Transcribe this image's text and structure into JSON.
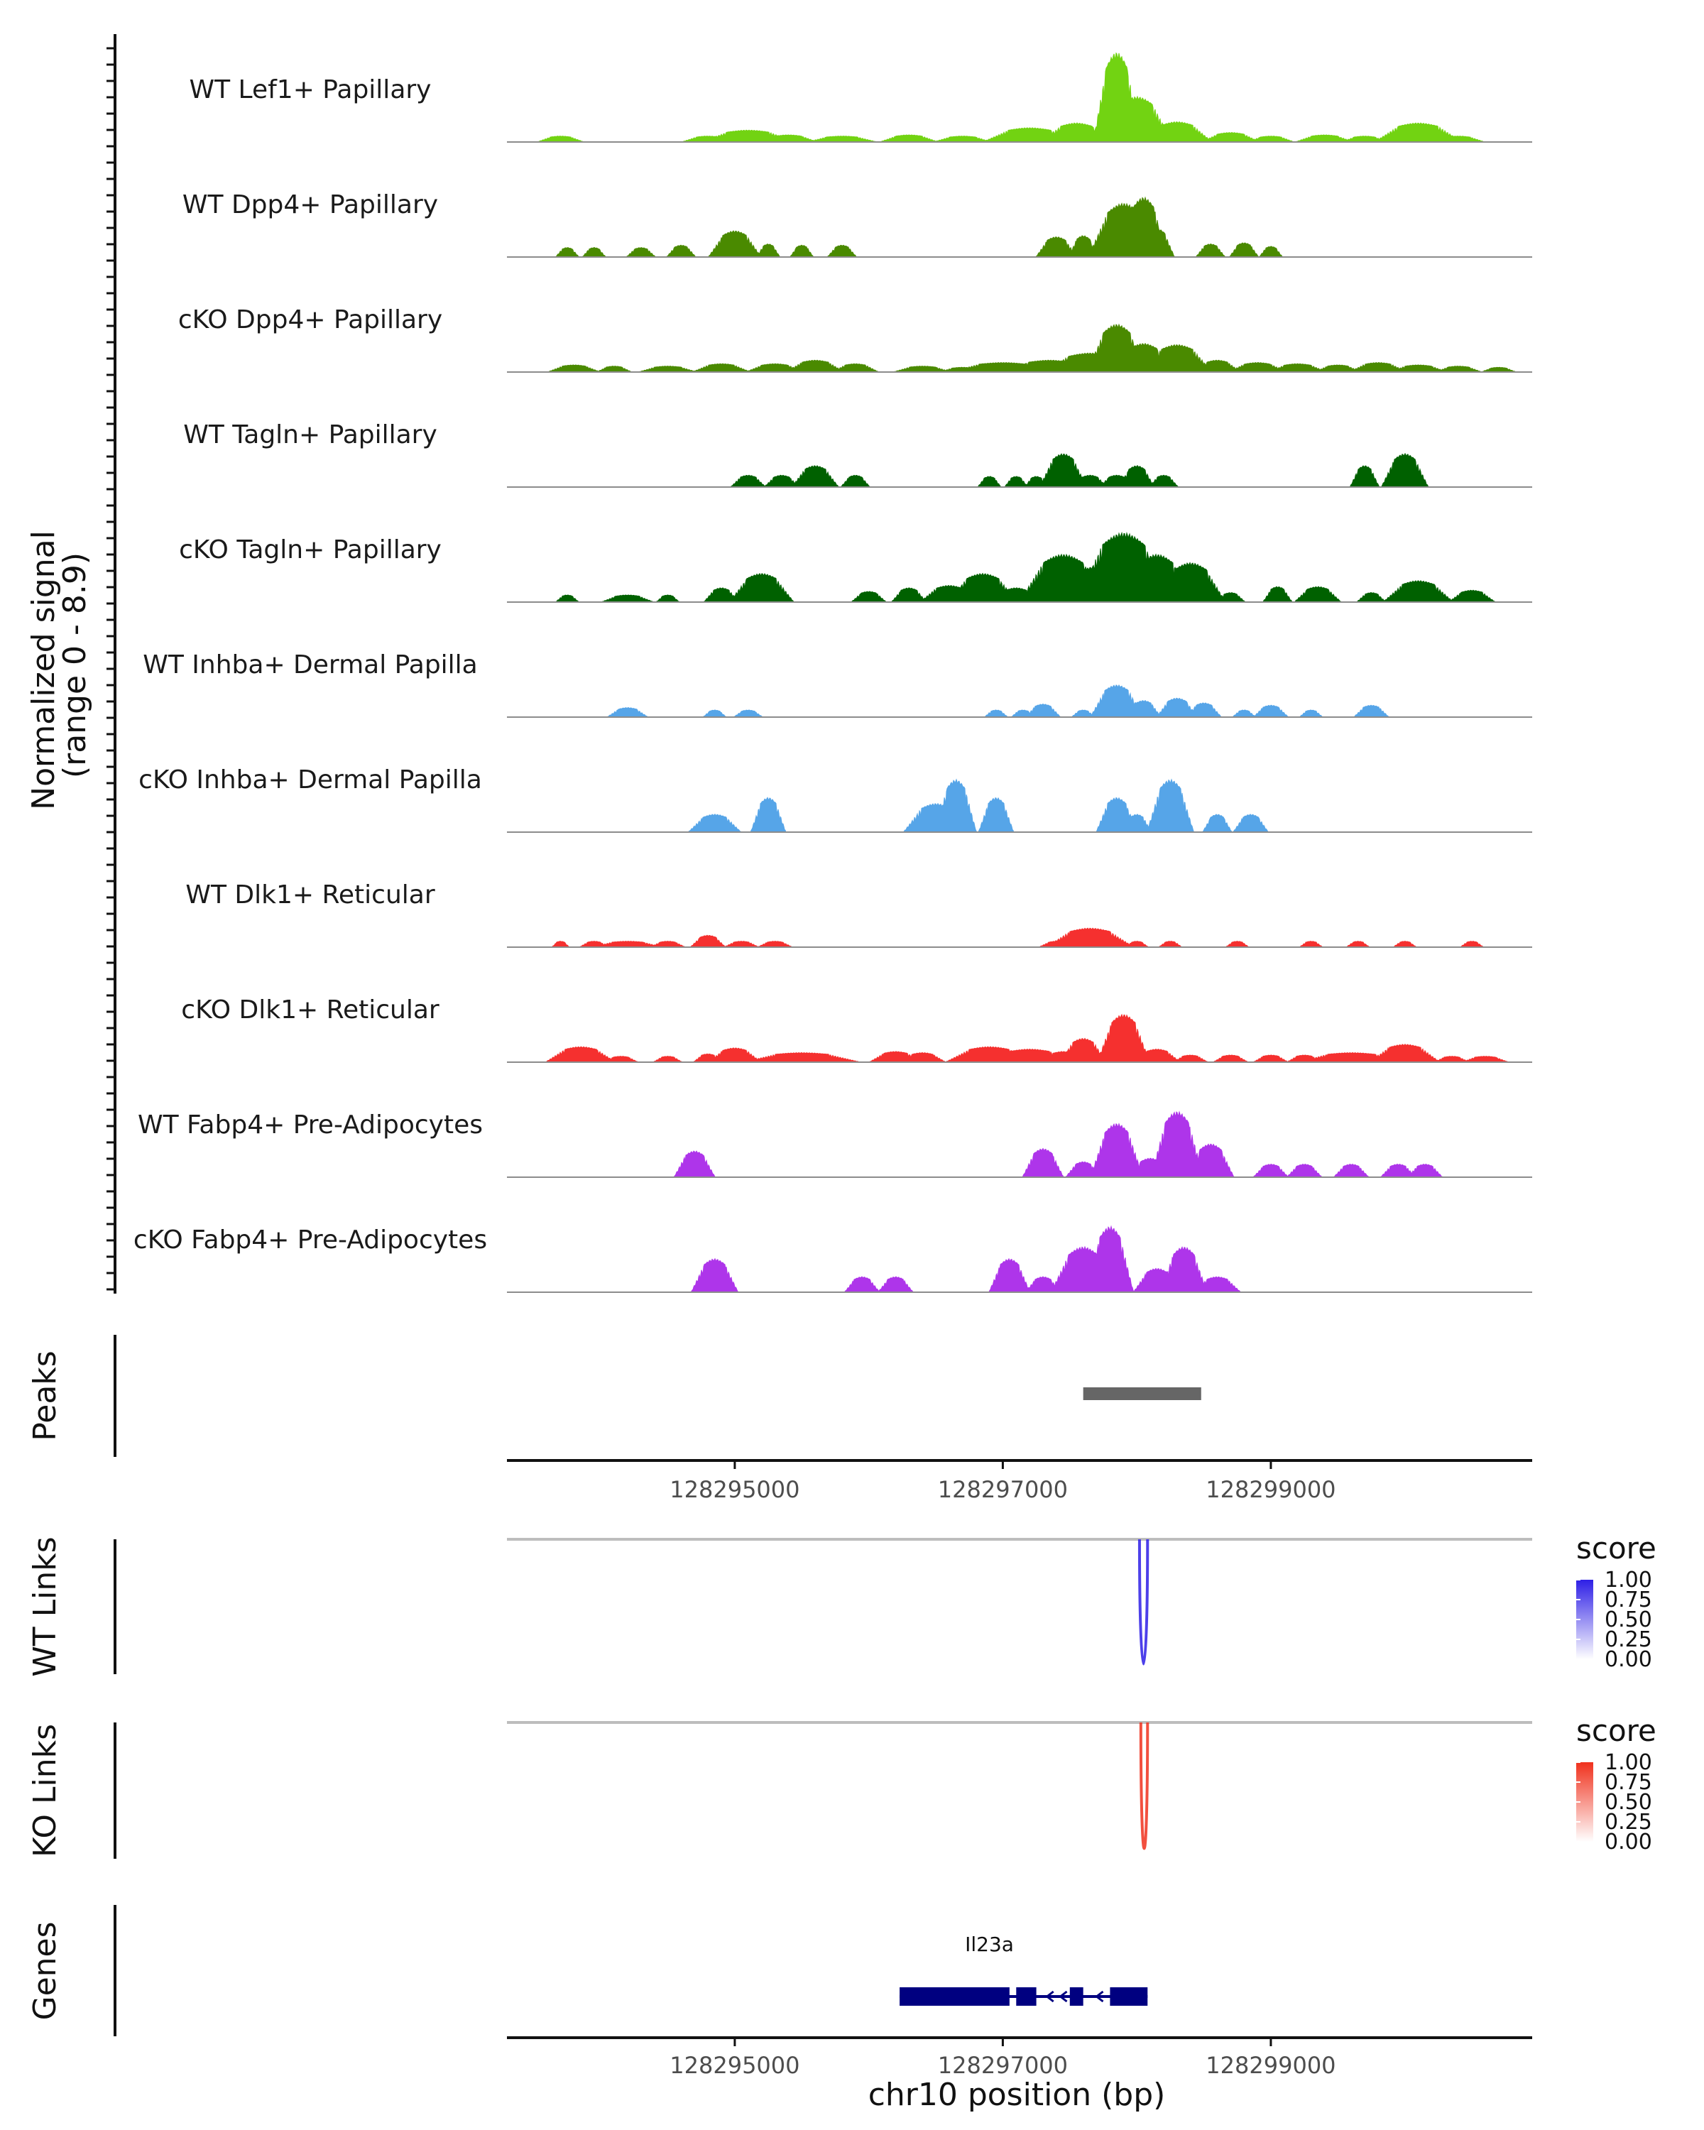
{
  "chart_data": {
    "type": "area",
    "title": "",
    "region": {
      "chrom": "chr10",
      "start": 128293300,
      "end": 128300950
    },
    "signal_axis_label": "Normalized signal\n(range 0 - 8.9)",
    "signal_range": [
      0,
      8.9
    ],
    "x_axis_label": "chr10 position (bp)",
    "x_ticks": [
      128295000,
      128297000,
      128299000
    ],
    "x_tick_labels": [
      "128295000",
      "128297000",
      "128299000"
    ],
    "tracks": [
      {
        "name": "WT Lef1+ Papillary",
        "color": "#72D312",
        "peaks": [
          [
            128293700,
            80,
            0.5
          ],
          [
            128294800,
            90,
            0.5
          ],
          [
            128295100,
            160,
            1.0
          ],
          [
            128295400,
            100,
            0.6
          ],
          [
            128295800,
            120,
            0.5
          ],
          [
            128296300,
            100,
            0.6
          ],
          [
            128296700,
            100,
            0.5
          ],
          [
            128297200,
            160,
            1.2
          ],
          [
            128297550,
            120,
            1.6
          ],
          [
            128297850,
            80,
            7.5
          ],
          [
            128298000,
            120,
            3.8
          ],
          [
            128298300,
            120,
            1.7
          ],
          [
            128298700,
            100,
            0.8
          ],
          [
            128299000,
            80,
            0.5
          ],
          [
            128299400,
            100,
            0.6
          ],
          [
            128299700,
            80,
            0.5
          ],
          [
            128300100,
            150,
            1.6
          ],
          [
            128300400,
            90,
            0.5
          ]
        ]
      },
      {
        "name": "WT Dpp4+ Papillary",
        "color": "#4A8A00",
        "peaks": [
          [
            128293750,
            40,
            0.8
          ],
          [
            128293950,
            40,
            0.8
          ],
          [
            128294300,
            50,
            0.8
          ],
          [
            128294600,
            50,
            1.0
          ],
          [
            128295000,
            90,
            2.2
          ],
          [
            128295250,
            40,
            1.1
          ],
          [
            128295500,
            40,
            1.0
          ],
          [
            128295800,
            50,
            1.0
          ],
          [
            128297800,
            50,
            1.0
          ],
          [
            128297400,
            70,
            1.7
          ],
          [
            128297600,
            50,
            1.8
          ],
          [
            128297900,
            120,
            4.5
          ],
          [
            128298050,
            80,
            5.0
          ],
          [
            128298150,
            60,
            2.4
          ],
          [
            128298550,
            50,
            1.1
          ],
          [
            128298800,
            50,
            1.2
          ],
          [
            128299000,
            40,
            0.9
          ]
        ]
      },
      {
        "name": "cKO Dpp4+ Papillary",
        "color": "#4A8A00",
        "peaks": [
          [
            128293800,
            90,
            0.6
          ],
          [
            128294100,
            60,
            0.5
          ],
          [
            128294500,
            100,
            0.5
          ],
          [
            128294900,
            100,
            0.7
          ],
          [
            128295300,
            100,
            0.7
          ],
          [
            128295600,
            100,
            1.0
          ],
          [
            128295900,
            80,
            0.7
          ],
          [
            128296400,
            100,
            0.5
          ],
          [
            128296700,
            80,
            0.4
          ],
          [
            128297000,
            180,
            0.8
          ],
          [
            128297350,
            160,
            1.0
          ],
          [
            128297650,
            160,
            1.6
          ],
          [
            128297850,
            100,
            4.0
          ],
          [
            128298050,
            100,
            2.4
          ],
          [
            128298300,
            120,
            2.3
          ],
          [
            128298600,
            80,
            1.0
          ],
          [
            128298900,
            100,
            0.8
          ],
          [
            128299200,
            100,
            0.7
          ],
          [
            128299500,
            80,
            0.6
          ],
          [
            128299800,
            100,
            0.8
          ],
          [
            128300100,
            100,
            0.6
          ],
          [
            128300400,
            80,
            0.5
          ],
          [
            128300700,
            60,
            0.4
          ]
        ]
      },
      {
        "name": "WT Tagln+ Papillary",
        "color": "#006100",
        "peaks": [
          [
            128295100,
            60,
            1.0
          ],
          [
            128295350,
            60,
            1.0
          ],
          [
            128295600,
            80,
            1.8
          ],
          [
            128295900,
            50,
            1.0
          ],
          [
            128296900,
            40,
            0.9
          ],
          [
            128297100,
            40,
            0.9
          ],
          [
            128297250,
            40,
            0.9
          ],
          [
            128297450,
            80,
            2.8
          ],
          [
            128297650,
            60,
            1.0
          ],
          [
            128297850,
            60,
            1.0
          ],
          [
            128298000,
            60,
            1.8
          ],
          [
            128298200,
            50,
            1.0
          ],
          [
            128299700,
            50,
            1.8
          ],
          [
            128300000,
            80,
            2.8
          ]
        ]
      },
      {
        "name": "cKO Tagln+ Papillary",
        "color": "#006100",
        "peaks": [
          [
            128293750,
            40,
            0.6
          ],
          [
            128294200,
            90,
            0.6
          ],
          [
            128294500,
            40,
            0.6
          ],
          [
            128294900,
            60,
            1.2
          ],
          [
            128295200,
            110,
            2.4
          ],
          [
            128296000,
            60,
            0.9
          ],
          [
            128296300,
            60,
            1.2
          ],
          [
            128296600,
            100,
            1.4
          ],
          [
            128296850,
            120,
            2.4
          ],
          [
            128297100,
            80,
            1.2
          ],
          [
            128297450,
            150,
            4.0
          ],
          [
            128297700,
            140,
            3.0
          ],
          [
            128297900,
            160,
            5.8
          ],
          [
            128298150,
            120,
            4.0
          ],
          [
            128298400,
            120,
            3.3
          ],
          [
            128298700,
            50,
            0.8
          ],
          [
            128299050,
            50,
            1.3
          ],
          [
            128299350,
            80,
            1.3
          ],
          [
            128299750,
            50,
            0.8
          ],
          [
            128300100,
            120,
            1.8
          ],
          [
            128300500,
            80,
            1.0
          ]
        ]
      },
      {
        "name": "WT Inhba+ Dermal Papilla",
        "color": "#56A5E8",
        "peaks": [
          [
            128294200,
            70,
            0.8
          ],
          [
            128294850,
            40,
            0.6
          ],
          [
            128295100,
            50,
            0.6
          ],
          [
            128296950,
            40,
            0.6
          ],
          [
            128297150,
            40,
            0.6
          ],
          [
            128297300,
            60,
            1.1
          ],
          [
            128297600,
            40,
            0.6
          ],
          [
            128297850,
            90,
            2.7
          ],
          [
            128298050,
            60,
            1.4
          ],
          [
            128298300,
            70,
            1.6
          ],
          [
            128298500,
            60,
            1.2
          ],
          [
            128298800,
            40,
            0.6
          ],
          [
            128299000,
            60,
            1.0
          ],
          [
            128299300,
            40,
            0.6
          ],
          [
            128299750,
            60,
            1.0
          ]
        ]
      },
      {
        "name": "cKO Inhba+ Dermal Papilla",
        "color": "#56A5E8",
        "peaks": [
          [
            128294850,
            90,
            1.5
          ],
          [
            128295250,
            60,
            2.9
          ],
          [
            128296500,
            110,
            2.4
          ],
          [
            128296650,
            70,
            4.4
          ],
          [
            128296950,
            60,
            2.9
          ],
          [
            128297850,
            70,
            2.9
          ],
          [
            128298000,
            50,
            1.5
          ],
          [
            128298250,
            80,
            4.4
          ],
          [
            128298600,
            50,
            1.5
          ],
          [
            128298850,
            60,
            1.5
          ]
        ]
      },
      {
        "name": "WT Dlk1+ Reticular",
        "color": "#F5302F",
        "peaks": [
          [
            128293700,
            30,
            0.5
          ],
          [
            128293950,
            50,
            0.5
          ],
          [
            128294200,
            120,
            0.5
          ],
          [
            128294500,
            60,
            0.5
          ],
          [
            128294800,
            60,
            1.0
          ],
          [
            128295050,
            60,
            0.5
          ],
          [
            128295300,
            60,
            0.5
          ],
          [
            128297400,
            60,
            0.5
          ],
          [
            128297650,
            150,
            1.6
          ],
          [
            128298000,
            40,
            0.5
          ],
          [
            128298250,
            40,
            0.5
          ],
          [
            128298750,
            40,
            0.5
          ],
          [
            128299300,
            40,
            0.5
          ],
          [
            128299650,
            40,
            0.5
          ],
          [
            128300000,
            40,
            0.5
          ],
          [
            128300500,
            40,
            0.5
          ]
        ]
      },
      {
        "name": "cKO Dlk1+ Reticular",
        "color": "#F5302F",
        "peaks": [
          [
            128293850,
            120,
            1.3
          ],
          [
            128294150,
            60,
            0.5
          ],
          [
            128294500,
            50,
            0.5
          ],
          [
            128294800,
            50,
            0.7
          ],
          [
            128295000,
            90,
            1.2
          ],
          [
            128295500,
            200,
            0.8
          ],
          [
            128296200,
            90,
            0.9
          ],
          [
            128296400,
            80,
            0.8
          ],
          [
            128296900,
            150,
            1.3
          ],
          [
            128297200,
            150,
            1.1
          ],
          [
            128297450,
            80,
            0.9
          ],
          [
            128297600,
            80,
            2.0
          ],
          [
            128297900,
            90,
            4.0
          ],
          [
            128298150,
            80,
            1.1
          ],
          [
            128298400,
            60,
            0.6
          ],
          [
            128298700,
            60,
            0.6
          ],
          [
            128299000,
            60,
            0.6
          ],
          [
            128299250,
            60,
            0.6
          ],
          [
            128299600,
            180,
            0.8
          ],
          [
            128300000,
            120,
            1.5
          ],
          [
            128300350,
            60,
            0.5
          ],
          [
            128300600,
            80,
            0.5
          ]
        ]
      },
      {
        "name": "WT Fabp4+ Pre-Adipocytes",
        "color": "#AE35EA",
        "peaks": [
          [
            128294700,
            70,
            2.2
          ],
          [
            128297300,
            70,
            2.4
          ],
          [
            128297600,
            60,
            1.3
          ],
          [
            128297850,
            90,
            4.5
          ],
          [
            128298100,
            70,
            1.6
          ],
          [
            128298300,
            90,
            5.5
          ],
          [
            128298550,
            80,
            2.8
          ],
          [
            128299000,
            60,
            1.1
          ],
          [
            128299250,
            60,
            1.1
          ],
          [
            128299600,
            60,
            1.1
          ],
          [
            128299950,
            60,
            1.1
          ],
          [
            128300150,
            60,
            1.1
          ]
        ]
      },
      {
        "name": "cKO Fabp4+ Pre-Adipocytes",
        "color": "#AE35EA",
        "peaks": [
          [
            128294850,
            80,
            2.8
          ],
          [
            128295950,
            60,
            1.3
          ],
          [
            128296200,
            60,
            1.3
          ],
          [
            128297050,
            70,
            2.8
          ],
          [
            128297300,
            60,
            1.3
          ],
          [
            128297600,
            110,
            3.8
          ],
          [
            128297800,
            80,
            5.5
          ],
          [
            128297750,
            50,
            3.0
          ],
          [
            128298150,
            80,
            2.0
          ],
          [
            128298350,
            80,
            3.8
          ],
          [
            128298600,
            80,
            1.3
          ]
        ]
      }
    ],
    "peaks_track": {
      "label": "Peaks",
      "color": "#666666",
      "regions": [
        [
          128297600,
          128298480
        ]
      ]
    },
    "link_tracks": [
      {
        "label": "WT Links",
        "legend_title": "score",
        "gradient": [
          "#FFFFFF",
          "#2E1FE6"
        ],
        "legend_ticks": [
          "1.00",
          "0.75",
          "0.50",
          "0.25",
          "0.00"
        ],
        "links": [
          {
            "start": 128298020,
            "end": 128298080,
            "score": 0.8
          }
        ]
      },
      {
        "label": "KO Links",
        "legend_title": "score",
        "gradient": [
          "#FFFFFF",
          "#F0311D"
        ],
        "legend_ticks": [
          "1.00",
          "0.75",
          "0.50",
          "0.25",
          "0.00"
        ],
        "links": [
          {
            "start": 128298030,
            "end": 128298080,
            "score": 0.8
          }
        ]
      }
    ],
    "genes_track": {
      "label": "Genes",
      "color": "#000080",
      "genes": [
        {
          "name": "Il23a",
          "start": 128296230,
          "end": 128298080,
          "strand": "-",
          "label_position": 128296900,
          "exons": [
            [
              128296230,
              128297050
            ],
            [
              128297100,
              128297250
            ],
            [
              128297500,
              128297600
            ],
            [
              128297800,
              128298080
            ]
          ]
        }
      ]
    }
  }
}
